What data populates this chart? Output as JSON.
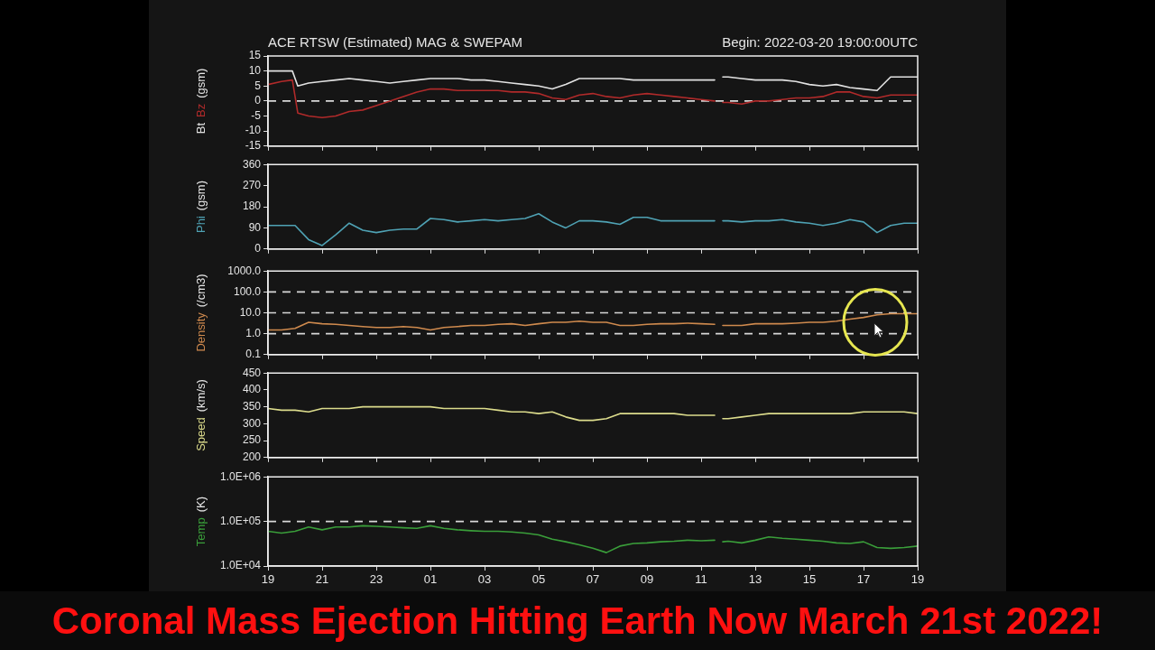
{
  "chart_data": [
    {
      "type": "line",
      "title": "ACE RTSW (Estimated) MAG & SWEPAM",
      "subtitle": "Begin: 2022-03-20 19:00:00UTC",
      "ylabel": "(gsm)",
      "x": [
        "2022-03-20T19:00",
        "2022-03-20T19:30",
        "2022-03-20T19:54",
        "2022-03-20T20:06",
        "2022-03-20T20:30",
        "2022-03-20T21:00",
        "2022-03-20T21:30",
        "2022-03-20T22:00",
        "2022-03-20T22:30",
        "2022-03-20T23:00",
        "2022-03-20T23:30",
        "2022-03-21T00:00",
        "2022-03-21T00:30",
        "2022-03-21T01:00",
        "2022-03-21T01:30",
        "2022-03-21T02:00",
        "2022-03-21T02:30",
        "2022-03-21T03:00",
        "2022-03-21T03:30",
        "2022-03-21T04:00",
        "2022-03-21T04:30",
        "2022-03-21T05:00",
        "2022-03-21T05:30",
        "2022-03-21T06:00",
        "2022-03-21T06:30",
        "2022-03-21T07:00",
        "2022-03-21T07:30",
        "2022-03-21T08:00",
        "2022-03-21T08:30",
        "2022-03-21T09:00",
        "2022-03-21T09:30",
        "2022-03-21T10:00",
        "2022-03-21T10:30",
        "2022-03-21T11:00",
        "2022-03-21T11:30",
        "2022-03-21T11:36",
        "2022-03-21T11:48",
        "2022-03-21T12:00",
        "2022-03-21T12:30",
        "2022-03-21T13:00",
        "2022-03-21T13:30",
        "2022-03-21T14:00",
        "2022-03-21T14:30",
        "2022-03-21T15:00",
        "2022-03-21T15:30",
        "2022-03-21T16:00",
        "2022-03-21T16:30",
        "2022-03-21T17:00",
        "2022-03-21T17:30",
        "2022-03-21T18:00",
        "2022-03-21T18:30",
        "2022-03-21T19:00"
      ],
      "series": [
        {
          "name": "Bt",
          "color": "#e2e2e2",
          "values": [
            10,
            10,
            10,
            5,
            6,
            6.5,
            7,
            7.5,
            7,
            6.5,
            6,
            6.5,
            7,
            7.5,
            7.5,
            7.5,
            7,
            7,
            6.5,
            6,
            5.5,
            5,
            4,
            5.5,
            7.5,
            7.5,
            7.5,
            7.5,
            7,
            7,
            7,
            7,
            7,
            7,
            7,
            null,
            8,
            8,
            7.5,
            7,
            7,
            7,
            6.5,
            5.5,
            5,
            5.5,
            4.5,
            4,
            3.5,
            8,
            8,
            8
          ]
        },
        {
          "name": "Bz",
          "color": "#b02a2a",
          "values": [
            5.5,
            6.5,
            7,
            -4,
            -5,
            -5.5,
            -5,
            -3.5,
            -3,
            -1.5,
            0,
            1.5,
            3,
            4,
            4,
            3.5,
            3.5,
            3.5,
            3.5,
            3,
            3,
            2.5,
            1,
            0.5,
            2,
            2.5,
            1.5,
            1,
            2,
            2.5,
            2,
            1.5,
            1,
            0.5,
            0,
            null,
            -0.5,
            -0.5,
            -1,
            0,
            0,
            0.5,
            1,
            1,
            1.5,
            3,
            3,
            1.5,
            1,
            2,
            2,
            2
          ]
        }
      ],
      "xlim": [
        "2022-03-20T19:00",
        "2022-03-21T19:00"
      ],
      "xticks": [
        {
          "value": "2022-03-20T19:00",
          "label": null
        },
        {
          "value": "2022-03-20T21:00",
          "label": null
        },
        {
          "value": "2022-03-20T23:00",
          "label": null
        },
        {
          "value": "2022-03-21T01:00",
          "label": null
        },
        {
          "value": "2022-03-21T03:00",
          "label": null
        },
        {
          "value": "2022-03-21T05:00",
          "label": null
        },
        {
          "value": "2022-03-21T07:00",
          "label": null
        },
        {
          "value": "2022-03-21T09:00",
          "label": null
        },
        {
          "value": "2022-03-21T11:00",
          "label": null
        },
        {
          "value": "2022-03-21T13:00",
          "label": null
        },
        {
          "value": "2022-03-21T15:00",
          "label": null
        },
        {
          "value": "2022-03-21T17:00",
          "label": null
        },
        {
          "value": "2022-03-21T19:00",
          "label": null
        }
      ],
      "ylim": [
        -15,
        15
      ],
      "yticks": [
        -15,
        -10,
        -5,
        0,
        5,
        10,
        15
      ],
      "ref_lines": [
        {
          "axis": "y",
          "value": 0,
          "color": "#d8d8d8",
          "line_style": "dashed"
        }
      ],
      "tick_labels": "y"
    },
    {
      "type": "line",
      "ylabel": "(gsm)",
      "x": [
        "2022-03-20T19:00",
        "2022-03-20T19:30",
        "2022-03-20T20:00",
        "2022-03-20T20:30",
        "2022-03-20T21:00",
        "2022-03-20T21:30",
        "2022-03-20T22:00",
        "2022-03-20T22:30",
        "2022-03-20T23:00",
        "2022-03-20T23:30",
        "2022-03-21T00:00",
        "2022-03-21T00:30",
        "2022-03-21T01:00",
        "2022-03-21T01:30",
        "2022-03-21T02:00",
        "2022-03-21T02:30",
        "2022-03-21T03:00",
        "2022-03-21T03:30",
        "2022-03-21T04:00",
        "2022-03-21T04:30",
        "2022-03-21T05:00",
        "2022-03-21T05:30",
        "2022-03-21T06:00",
        "2022-03-21T06:30",
        "2022-03-21T07:00",
        "2022-03-21T07:30",
        "2022-03-21T08:00",
        "2022-03-21T08:30",
        "2022-03-21T09:00",
        "2022-03-21T09:30",
        "2022-03-21T10:00",
        "2022-03-21T10:30",
        "2022-03-21T11:00",
        "2022-03-21T11:30",
        "2022-03-21T11:36",
        "2022-03-21T11:48",
        "2022-03-21T12:00",
        "2022-03-21T12:30",
        "2022-03-21T13:00",
        "2022-03-21T13:30",
        "2022-03-21T14:00",
        "2022-03-21T14:30",
        "2022-03-21T15:00",
        "2022-03-21T15:30",
        "2022-03-21T16:00",
        "2022-03-21T16:30",
        "2022-03-21T17:00",
        "2022-03-21T17:30",
        "2022-03-21T18:00",
        "2022-03-21T18:30",
        "2022-03-21T19:00"
      ],
      "series": [
        {
          "name": "Phi",
          "color": "#4fa2b4",
          "values": [
            100,
            100,
            100,
            40,
            15,
            60,
            110,
            80,
            70,
            80,
            85,
            85,
            130,
            125,
            115,
            120,
            125,
            120,
            125,
            130,
            150,
            115,
            90,
            120,
            120,
            115,
            105,
            135,
            135,
            120,
            120,
            120,
            120,
            120,
            null,
            120,
            120,
            115,
            120,
            120,
            125,
            115,
            110,
            100,
            110,
            125,
            115,
            70,
            100,
            110,
            110
          ]
        }
      ],
      "xlim": [
        "2022-03-20T19:00",
        "2022-03-21T19:00"
      ],
      "xticks": [
        {
          "value": "2022-03-20T19:00",
          "label": null
        },
        {
          "value": "2022-03-20T21:00",
          "label": null
        },
        {
          "value": "2022-03-20T23:00",
          "label": null
        },
        {
          "value": "2022-03-21T01:00",
          "label": null
        },
        {
          "value": "2022-03-21T03:00",
          "label": null
        },
        {
          "value": "2022-03-21T05:00",
          "label": null
        },
        {
          "value": "2022-03-21T07:00",
          "label": null
        },
        {
          "value": "2022-03-21T09:00",
          "label": null
        },
        {
          "value": "2022-03-21T11:00",
          "label": null
        },
        {
          "value": "2022-03-21T13:00",
          "label": null
        },
        {
          "value": "2022-03-21T15:00",
          "label": null
        },
        {
          "value": "2022-03-21T17:00",
          "label": null
        },
        {
          "value": "2022-03-21T19:00",
          "label": null
        }
      ],
      "ylim": [
        0,
        360
      ],
      "yticks": [
        0,
        90,
        180,
        270,
        360
      ],
      "tick_labels": "y"
    },
    {
      "type": "line",
      "ylabel": "(/cm3)",
      "log": true,
      "x": [
        "2022-03-20T19:00",
        "2022-03-20T19:30",
        "2022-03-20T20:00",
        "2022-03-20T20:30",
        "2022-03-20T21:00",
        "2022-03-20T21:30",
        "2022-03-20T22:00",
        "2022-03-20T22:30",
        "2022-03-20T23:00",
        "2022-03-20T23:30",
        "2022-03-21T00:00",
        "2022-03-21T00:30",
        "2022-03-21T01:00",
        "2022-03-21T01:30",
        "2022-03-21T02:00",
        "2022-03-21T02:30",
        "2022-03-21T03:00",
        "2022-03-21T03:30",
        "2022-03-21T04:00",
        "2022-03-21T04:30",
        "2022-03-21T05:00",
        "2022-03-21T05:30",
        "2022-03-21T06:00",
        "2022-03-21T06:30",
        "2022-03-21T07:00",
        "2022-03-21T07:30",
        "2022-03-21T08:00",
        "2022-03-21T08:30",
        "2022-03-21T09:00",
        "2022-03-21T09:30",
        "2022-03-21T10:00",
        "2022-03-21T10:30",
        "2022-03-21T11:00",
        "2022-03-21T11:30",
        "2022-03-21T11:36",
        "2022-03-21T11:48",
        "2022-03-21T12:00",
        "2022-03-21T12:30",
        "2022-03-21T13:00",
        "2022-03-21T13:30",
        "2022-03-21T14:00",
        "2022-03-21T14:30",
        "2022-03-21T15:00",
        "2022-03-21T15:30",
        "2022-03-21T16:00",
        "2022-03-21T16:30",
        "2022-03-21T17:00",
        "2022-03-21T17:30",
        "2022-03-21T18:00",
        "2022-03-21T18:30",
        "2022-03-21T19:00"
      ],
      "series": [
        {
          "name": "Density",
          "color": "#cf8a4e",
          "values": [
            1.5,
            1.5,
            1.8,
            3.5,
            3,
            2.8,
            2.5,
            2.2,
            2,
            2,
            2.2,
            2,
            1.5,
            2,
            2.2,
            2.5,
            2.5,
            2.8,
            3,
            2.5,
            3,
            3.5,
            3.5,
            4,
            3.5,
            3.5,
            2.5,
            2.5,
            2.8,
            3,
            3,
            3.2,
            3,
            2.8,
            null,
            2.5,
            2.5,
            2.5,
            3,
            3,
            3,
            3.2,
            3.5,
            3.5,
            4,
            5,
            6,
            8,
            9,
            9,
            9
          ]
        }
      ],
      "xlim": [
        "2022-03-20T19:00",
        "2022-03-21T19:00"
      ],
      "xticks": [
        {
          "value": "2022-03-20T19:00",
          "label": null
        },
        {
          "value": "2022-03-20T21:00",
          "label": null
        },
        {
          "value": "2022-03-20T23:00",
          "label": null
        },
        {
          "value": "2022-03-21T01:00",
          "label": null
        },
        {
          "value": "2022-03-21T03:00",
          "label": null
        },
        {
          "value": "2022-03-21T05:00",
          "label": null
        },
        {
          "value": "2022-03-21T07:00",
          "label": null
        },
        {
          "value": "2022-03-21T09:00",
          "label": null
        },
        {
          "value": "2022-03-21T11:00",
          "label": null
        },
        {
          "value": "2022-03-21T13:00",
          "label": null
        },
        {
          "value": "2022-03-21T15:00",
          "label": null
        },
        {
          "value": "2022-03-21T17:00",
          "label": null
        },
        {
          "value": "2022-03-21T19:00",
          "label": null
        }
      ],
      "ylim": [
        0.1,
        1000
      ],
      "yticks": [
        0.1,
        {
          "value": 1,
          "label": "1.0"
        },
        {
          "value": 10,
          "label": "10.0"
        },
        {
          "value": 100,
          "label": "100.0"
        },
        {
          "value": 1000,
          "label": "1000.0"
        }
      ],
      "ref_lines": [
        {
          "axis": "y",
          "value": 1,
          "color": "#d8d8d8",
          "line_style": "dashed"
        },
        {
          "axis": "y",
          "value": 10,
          "color": "#d8d8d8",
          "line_style": "dashed"
        },
        {
          "axis": "y",
          "value": 100,
          "color": "#d8d8d8",
          "line_style": "dashed"
        }
      ],
      "tick_labels": "y"
    },
    {
      "type": "line",
      "ylabel": "(km/s)",
      "x": [
        "2022-03-20T19:00",
        "2022-03-20T19:30",
        "2022-03-20T20:00",
        "2022-03-20T20:30",
        "2022-03-20T21:00",
        "2022-03-20T21:30",
        "2022-03-20T22:00",
        "2022-03-20T22:30",
        "2022-03-20T23:00",
        "2022-03-20T23:30",
        "2022-03-21T00:00",
        "2022-03-21T00:30",
        "2022-03-21T01:00",
        "2022-03-21T01:30",
        "2022-03-21T02:00",
        "2022-03-21T02:30",
        "2022-03-21T03:00",
        "2022-03-21T03:30",
        "2022-03-21T04:00",
        "2022-03-21T04:30",
        "2022-03-21T05:00",
        "2022-03-21T05:30",
        "2022-03-21T06:00",
        "2022-03-21T06:30",
        "2022-03-21T07:00",
        "2022-03-21T07:30",
        "2022-03-21T08:00",
        "2022-03-21T08:30",
        "2022-03-21T09:00",
        "2022-03-21T09:30",
        "2022-03-21T10:00",
        "2022-03-21T10:30",
        "2022-03-21T11:00",
        "2022-03-21T11:30",
        "2022-03-21T11:36",
        "2022-03-21T11:48",
        "2022-03-21T12:00",
        "2022-03-21T12:30",
        "2022-03-21T13:00",
        "2022-03-21T13:30",
        "2022-03-21T14:00",
        "2022-03-21T14:30",
        "2022-03-21T15:00",
        "2022-03-21T15:30",
        "2022-03-21T16:00",
        "2022-03-21T16:30",
        "2022-03-21T17:00",
        "2022-03-21T17:30",
        "2022-03-21T18:00",
        "2022-03-21T18:30",
        "2022-03-21T19:00"
      ],
      "series": [
        {
          "name": "Speed",
          "color": "#dcdc8c",
          "values": [
            345,
            340,
            340,
            335,
            345,
            345,
            345,
            350,
            350,
            350,
            350,
            350,
            350,
            345,
            345,
            345,
            345,
            340,
            335,
            335,
            330,
            335,
            320,
            310,
            310,
            315,
            330,
            330,
            330,
            330,
            330,
            325,
            325,
            325,
            null,
            315,
            315,
            320,
            325,
            330,
            330,
            330,
            330,
            330,
            330,
            330,
            335,
            335,
            335,
            335,
            330
          ]
        }
      ],
      "xlim": [
        "2022-03-20T19:00",
        "2022-03-21T19:00"
      ],
      "xticks": [
        {
          "value": "2022-03-20T19:00",
          "label": null
        },
        {
          "value": "2022-03-20T21:00",
          "label": null
        },
        {
          "value": "2022-03-20T23:00",
          "label": null
        },
        {
          "value": "2022-03-21T01:00",
          "label": null
        },
        {
          "value": "2022-03-21T03:00",
          "label": null
        },
        {
          "value": "2022-03-21T05:00",
          "label": null
        },
        {
          "value": "2022-03-21T07:00",
          "label": null
        },
        {
          "value": "2022-03-21T09:00",
          "label": null
        },
        {
          "value": "2022-03-21T11:00",
          "label": null
        },
        {
          "value": "2022-03-21T13:00",
          "label": null
        },
        {
          "value": "2022-03-21T15:00",
          "label": null
        },
        {
          "value": "2022-03-21T17:00",
          "label": null
        },
        {
          "value": "2022-03-21T19:00",
          "label": null
        }
      ],
      "ylim": [
        200,
        450
      ],
      "yticks": [
        200,
        250,
        300,
        350,
        400,
        450
      ],
      "tick_labels": "y"
    },
    {
      "type": "line",
      "ylabel": "(K)",
      "log": true,
      "x": [
        "2022-03-20T19:00",
        "2022-03-20T19:30",
        "2022-03-20T20:00",
        "2022-03-20T20:30",
        "2022-03-20T21:00",
        "2022-03-20T21:30",
        "2022-03-20T22:00",
        "2022-03-20T22:30",
        "2022-03-20T23:00",
        "2022-03-20T23:30",
        "2022-03-21T00:00",
        "2022-03-21T00:30",
        "2022-03-21T01:00",
        "2022-03-21T01:30",
        "2022-03-21T02:00",
        "2022-03-21T02:30",
        "2022-03-21T03:00",
        "2022-03-21T03:30",
        "2022-03-21T04:00",
        "2022-03-21T04:30",
        "2022-03-21T05:00",
        "2022-03-21T05:30",
        "2022-03-21T06:00",
        "2022-03-21T06:30",
        "2022-03-21T07:00",
        "2022-03-21T07:30",
        "2022-03-21T08:00",
        "2022-03-21T08:30",
        "2022-03-21T09:00",
        "2022-03-21T09:30",
        "2022-03-21T10:00",
        "2022-03-21T10:30",
        "2022-03-21T11:00",
        "2022-03-21T11:30",
        "2022-03-21T11:36",
        "2022-03-21T11:48",
        "2022-03-21T12:00",
        "2022-03-21T12:30",
        "2022-03-21T13:00",
        "2022-03-21T13:30",
        "2022-03-21T14:00",
        "2022-03-21T14:30",
        "2022-03-21T15:00",
        "2022-03-21T15:30",
        "2022-03-21T16:00",
        "2022-03-21T16:30",
        "2022-03-21T17:00",
        "2022-03-21T17:30",
        "2022-03-21T18:00",
        "2022-03-21T18:30",
        "2022-03-21T19:00"
      ],
      "series": [
        {
          "name": "Temp",
          "color": "#3a9e3a",
          "values": [
            60000,
            55000,
            60000,
            75000,
            65000,
            75000,
            75000,
            80000,
            78000,
            75000,
            72000,
            70000,
            80000,
            70000,
            65000,
            62000,
            60000,
            60000,
            58000,
            55000,
            50000,
            40000,
            35000,
            30000,
            25000,
            20000,
            28000,
            32000,
            33000,
            35000,
            36000,
            38000,
            37000,
            38000,
            null,
            35000,
            36000,
            33000,
            38000,
            45000,
            42000,
            40000,
            38000,
            36000,
            33000,
            32000,
            35000,
            26000,
            25000,
            26000,
            28000
          ]
        }
      ],
      "xlim": [
        "2022-03-20T19:00",
        "2022-03-21T19:00"
      ],
      "xticks": [
        {
          "value": "2022-03-20T19:00",
          "label": "19"
        },
        {
          "value": "2022-03-20T21:00",
          "label": "21"
        },
        {
          "value": "2022-03-20T23:00",
          "label": "23"
        },
        {
          "value": "2022-03-21T01:00",
          "label": "01"
        },
        {
          "value": "2022-03-21T03:00",
          "label": "03"
        },
        {
          "value": "2022-03-21T05:00",
          "label": "05"
        },
        {
          "value": "2022-03-21T07:00",
          "label": "07"
        },
        {
          "value": "2022-03-21T09:00",
          "label": "09"
        },
        {
          "value": "2022-03-21T11:00",
          "label": "11"
        },
        {
          "value": "2022-03-21T13:00",
          "label": "13"
        },
        {
          "value": "2022-03-21T15:00",
          "label": "15"
        },
        {
          "value": "2022-03-21T17:00",
          "label": "17"
        },
        {
          "value": "2022-03-21T19:00",
          "label": "19"
        }
      ],
      "ylim": [
        10000,
        1000000
      ],
      "yticks": [
        {
          "value": 10000,
          "label": "1.0E+04"
        },
        {
          "value": 100000,
          "label": "1.0E+05"
        },
        {
          "value": 1000000,
          "label": "1.0E+06"
        }
      ],
      "ref_lines": [
        {
          "axis": "y",
          "value": 100000,
          "color": "#d8d8d8",
          "line_style": "dashed"
        }
      ],
      "annotations": [
        "Coronal Mass Ejection Hitting Earth Now March 21st 2022!"
      ]
    }
  ]
}
